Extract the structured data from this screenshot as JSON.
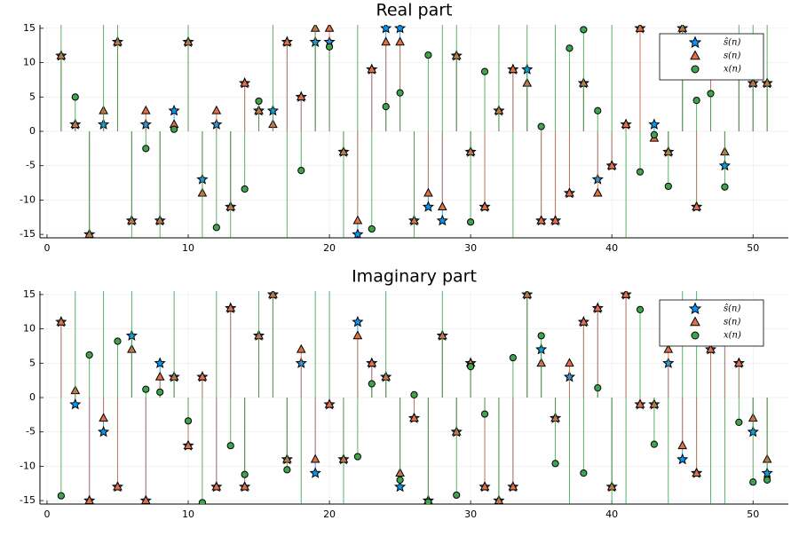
{
  "chart_data": [
    {
      "type": "stem",
      "title": "Real part",
      "x": [
        1,
        2,
        3,
        4,
        5,
        6,
        7,
        8,
        9,
        10,
        11,
        12,
        13,
        14,
        15,
        16,
        17,
        18,
        19,
        20,
        21,
        22,
        23,
        24,
        25,
        26,
        27,
        28,
        29,
        30,
        31,
        32,
        33,
        34,
        35,
        36,
        37,
        38,
        39,
        40,
        41,
        42,
        43,
        44,
        45,
        46,
        47,
        48,
        49,
        50,
        51
      ],
      "series": [
        {
          "name": "ŝ(n)",
          "color": "#009afa",
          "marker": "star",
          "values": [
            11,
            1,
            -15,
            1,
            13,
            -13,
            1,
            -13,
            3,
            13,
            -7,
            1,
            -11,
            7,
            3,
            3,
            13,
            5,
            13,
            13,
            -3,
            -15,
            9,
            15,
            15,
            -13,
            -11,
            -13,
            11,
            -3,
            -11,
            3,
            9,
            9,
            -13,
            -13,
            -9,
            7,
            -7,
            -5,
            1,
            15,
            1,
            -3,
            15,
            -11,
            9,
            -5,
            11,
            7,
            7
          ]
        },
        {
          "name": "s(n)",
          "color": "#e26f46",
          "marker": "triangle",
          "values": [
            11,
            1,
            -15,
            3,
            13,
            -13,
            3,
            -13,
            1,
            13,
            -9,
            3,
            -11,
            7,
            3,
            1,
            13,
            5,
            15,
            15,
            -3,
            -13,
            9,
            13,
            13,
            -13,
            -9,
            -11,
            11,
            -3,
            -11,
            3,
            9,
            7,
            -13,
            -13,
            -9,
            7,
            -9,
            -5,
            1,
            15,
            -1,
            -3,
            15,
            -11,
            9,
            -3,
            11,
            7,
            7
          ]
        },
        {
          "name": "x(n)",
          "color": "#3ea44e",
          "marker": "circle",
          "values": [
            17,
            5,
            -16,
            17,
            17,
            -16,
            -2.5,
            -16,
            0.3,
            17,
            -16,
            -14,
            -16,
            -8.4,
            4.4,
            17,
            -16,
            -5.7,
            17,
            12.3,
            -16,
            17,
            -14.2,
            3.6,
            5.6,
            -16,
            11.1,
            17,
            17,
            -13.2,
            8.7,
            17,
            -16,
            17,
            0.7,
            17,
            12.1,
            14.8,
            3,
            17,
            -16,
            -5.9,
            -0.5,
            -8,
            17,
            4.5,
            5.5,
            -8.1,
            17,
            17,
            17
          ]
        }
      ],
      "xlim": [
        -0.5,
        52.5
      ],
      "ylim": [
        -15.5,
        15.5
      ],
      "xticks": [
        0,
        10,
        20,
        30,
        40,
        50
      ],
      "yticks": [
        -15,
        -10,
        -5,
        0,
        5,
        10,
        15
      ],
      "grid": true,
      "legend": "top-right"
    },
    {
      "type": "stem",
      "title": "Imaginary part",
      "x": [
        1,
        2,
        3,
        4,
        5,
        6,
        7,
        8,
        9,
        10,
        11,
        12,
        13,
        14,
        15,
        16,
        17,
        18,
        19,
        20,
        21,
        22,
        23,
        24,
        25,
        26,
        27,
        28,
        29,
        30,
        31,
        32,
        33,
        34,
        35,
        36,
        37,
        38,
        39,
        40,
        41,
        42,
        43,
        44,
        45,
        46,
        47,
        48,
        49,
        50,
        51
      ],
      "series": [
        {
          "name": "ŝ(n)",
          "color": "#009afa",
          "marker": "star",
          "values": [
            11,
            -1,
            -15,
            -5,
            -13,
            9,
            -15,
            5,
            3,
            -7,
            3,
            -13,
            13,
            -13,
            9,
            15,
            -9,
            5,
            -11,
            -1,
            -9,
            11,
            5,
            3,
            -13,
            -3,
            -15,
            9,
            -5,
            5,
            -13,
            -15,
            -13,
            15,
            7,
            -3,
            3,
            11,
            13,
            -13,
            15,
            -1,
            -1,
            5,
            -9,
            -11,
            7,
            9,
            5,
            -5,
            -11
          ]
        },
        {
          "name": "s(n)",
          "color": "#e26f46",
          "marker": "triangle",
          "values": [
            11,
            1,
            -15,
            -3,
            -13,
            7,
            -15,
            3,
            3,
            -7,
            3,
            -13,
            13,
            -13,
            9,
            15,
            -9,
            7,
            -9,
            -1,
            -9,
            9,
            5,
            3,
            -11,
            -3,
            -15,
            9,
            -5,
            5,
            -13,
            -15,
            -13,
            15,
            5,
            -3,
            5,
            11,
            13,
            -13,
            15,
            -1,
            -1,
            7,
            -7,
            -11,
            7,
            9,
            5,
            -3,
            -9
          ]
        },
        {
          "name": "x(n)",
          "color": "#3ea44e",
          "marker": "circle",
          "values": [
            -14.3,
            17,
            6.2,
            17,
            8.2,
            17,
            1.2,
            0.8,
            17,
            -3.4,
            -15.3,
            17,
            -7,
            -11.2,
            17,
            17,
            -10.5,
            -16,
            17,
            17,
            -16,
            -8.6,
            2,
            17,
            -12,
            0.4,
            -15.2,
            17,
            -14.2,
            4.5,
            -2.4,
            -16,
            5.8,
            17,
            9,
            -9.6,
            -16,
            -11,
            1.4,
            -16,
            -16,
            12.8,
            -6.8,
            -16,
            17,
            17,
            -16,
            -16,
            -3.6,
            -12.3,
            -12
          ]
        }
      ],
      "xlim": [
        -0.5,
        52.5
      ],
      "ylim": [
        -15.5,
        15.5
      ],
      "xticks": [
        0,
        10,
        20,
        30,
        40,
        50
      ],
      "yticks": [
        -15,
        -10,
        -5,
        0,
        5,
        10,
        15
      ],
      "grid": true,
      "legend": "top-right"
    }
  ]
}
